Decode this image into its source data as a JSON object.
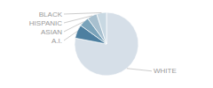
{
  "chart_data": {
    "type": "pie",
    "categories": [
      "WHITE",
      "A.I.",
      "ASIAN",
      "HISPANIC",
      "BLACK"
    ],
    "values": [
      78,
      7,
      5,
      5,
      5
    ],
    "colors": [
      "#d6dfe8",
      "#4d7fa0",
      "#7aa3ba",
      "#a8c0cf",
      "#c8d8e2"
    ]
  }
}
